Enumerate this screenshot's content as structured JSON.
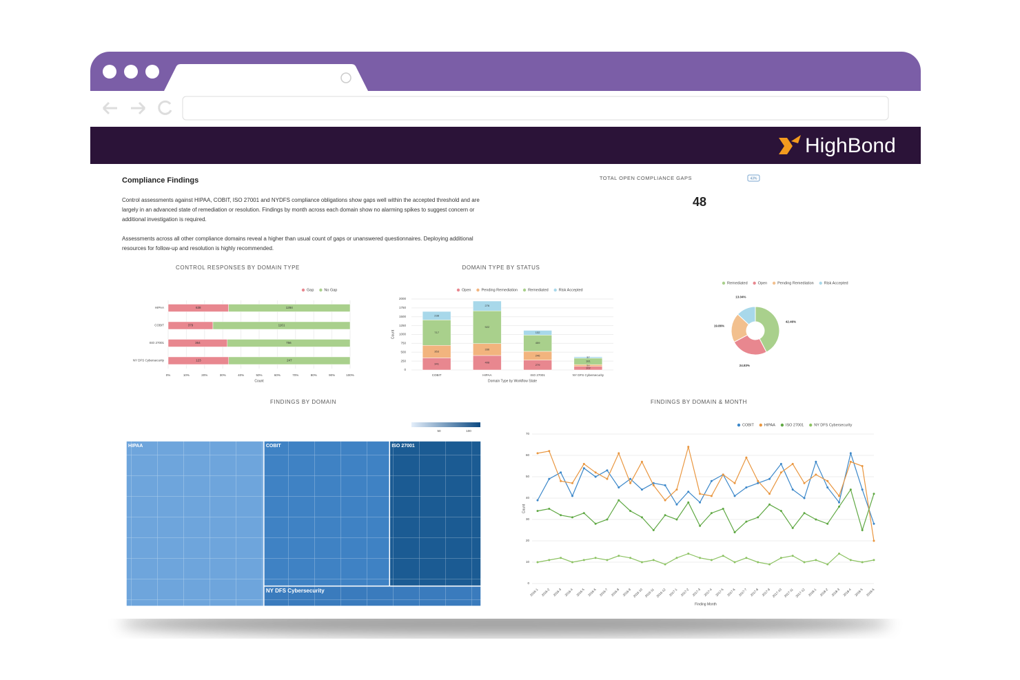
{
  "header": {
    "logo": "HighBond"
  },
  "summary": {
    "title": "Compliance Findings",
    "paragraphs": [
      "Control assessments against HIPAA, COBIT, ISO 27001 and NYDFS compliance obligations show gaps well within the accepted threshold and are largely in an advanced state of remediation or resolution. Findings by month across each domain show no alarming spikes to suggest concern or additional investigation is required.",
      "Assessments across all other compliance domains reveal a higher than usual count of gaps or unanswered questionnaires. Deploying additional resources for follow-up and resolution is highly recommended."
    ]
  },
  "kpi": {
    "label": "TOTAL OPEN COMPLIANCE GAPS",
    "badge": "43%",
    "value": 48
  },
  "chart_data": [
    {
      "type": "hbar",
      "title": "CONTROL RESPONSES BY DOMAIN TYPE",
      "categories": [
        "HIPAA",
        "COBIT",
        "ISO 27001",
        "NY DFS Cybersecurity"
      ],
      "series": [
        {
          "name": "Gap",
          "color": "#e8878f",
          "values": [
            638,
            379,
            364,
            123
          ]
        },
        {
          "name": "No Gap",
          "color": "#a9d08c",
          "values": [
            1284,
            1161,
            756,
            247
          ]
        }
      ],
      "xlim": [
        0,
        100
      ],
      "xticks": [
        {
          "value": 0,
          "label": "0%"
        },
        {
          "value": 10,
          "label": "10%"
        },
        {
          "value": 20,
          "label": "20%"
        },
        {
          "value": 30,
          "label": "30%"
        },
        {
          "value": 40,
          "label": "40%"
        },
        {
          "value": 50,
          "label": "50%"
        },
        {
          "value": 60,
          "label": "60%"
        },
        {
          "value": 70,
          "label": "70%"
        },
        {
          "value": 80,
          "label": "80%"
        },
        {
          "value": 90,
          "label": "90%"
        },
        {
          "value": 100,
          "label": "100%"
        }
      ],
      "xlabel": "Count",
      "grid": true
    },
    {
      "type": "stacked",
      "title": "DOMAIN TYPE BY STATUS",
      "categories": [
        "COBIT",
        "HIPAA",
        "ISO 27001",
        "NY DFS Cybersecurity"
      ],
      "series": [
        {
          "name": "Open",
          "color": "#e8878f",
          "values": [
            341,
            408,
            279,
            102
          ]
        },
        {
          "name": "Pending Remediation",
          "color": "#f2b47e",
          "values": [
            353,
            336,
            246,
            50
          ]
        },
        {
          "name": "Remediated",
          "color": "#a9d08c",
          "values": [
            717,
            922,
            459,
            181
          ]
        },
        {
          "name": "Risk Accepted",
          "color": "#a8d8ea",
          "values": [
            238,
            276,
            132,
            37
          ]
        }
      ],
      "ylim": [
        0,
        2000
      ],
      "yticks": [
        0,
        250,
        500,
        750,
        1000,
        1250,
        1500,
        1750,
        2000
      ],
      "ylabel": "Count",
      "xlabel": "Domain Type by Workflow State",
      "grid": true
    },
    {
      "type": "donut",
      "categories": [
        "Remediated",
        "Open",
        "Pending Remediation",
        "Risk Accepted"
      ],
      "values": [
        42.46,
        24.83,
        19.86,
        13.04
      ],
      "value_labels": [
        "42.46%",
        "24.83%",
        "19.86%",
        "13.04%"
      ],
      "colors": [
        "#a9d08c",
        "#e8878f",
        "#f2c08e",
        "#a8d8ea"
      ]
    },
    {
      "type": "treemap",
      "title": "FINDINGS BY DOMAIN",
      "categories": [
        "HIPAA",
        "COBIT",
        "ISO 27001",
        "NY DFS Cybersecurity"
      ],
      "values": [
        1922,
        1540,
        1120,
        370
      ],
      "colors": [
        "#6ea5dc",
        "#3f82c4",
        "#1b5b93",
        "#3a7bbd"
      ],
      "colorbar_ticks": [
        50,
        100
      ]
    },
    {
      "type": "line",
      "title": "FINDINGS BY DOMAIN & MONTH",
      "categories": [
        "2016-1",
        "2016-2",
        "2016-3",
        "2016-4",
        "2016-5",
        "2016-6",
        "2016-7",
        "2016-8",
        "2016-9",
        "2016-10",
        "2016-11",
        "2016-12",
        "2017-1",
        "2017-2",
        "2017-3",
        "2017-4",
        "2017-5",
        "2017-6",
        "2017-7",
        "2017-8",
        "2017-9",
        "2017-10",
        "2017-11",
        "2017-12",
        "2018-1",
        "2018-2",
        "2018-3",
        "2018-4",
        "2018-5",
        "2018-6"
      ],
      "series": [
        {
          "name": "COBIT",
          "color": "#3b87c9",
          "values": [
            39,
            49,
            52,
            41,
            54,
            50,
            53,
            45,
            49,
            44,
            47,
            46,
            37,
            43,
            38,
            48,
            51,
            41,
            45,
            47,
            49,
            56,
            44,
            40,
            57,
            45,
            38,
            61,
            44,
            28
          ]
        },
        {
          "name": "HIPAA",
          "color": "#e9963f",
          "values": [
            61,
            62,
            48,
            47,
            56,
            52,
            49,
            61,
            47,
            57,
            46,
            39,
            44,
            64,
            42,
            41,
            51,
            47,
            59,
            48,
            42,
            52,
            56,
            47,
            51,
            48,
            41,
            57,
            55,
            20
          ]
        },
        {
          "name": "ISO 27001",
          "color": "#5fa843",
          "values": [
            34,
            35,
            32,
            31,
            33,
            28,
            30,
            39,
            34,
            31,
            25,
            32,
            30,
            38,
            27,
            33,
            35,
            24,
            29,
            31,
            37,
            34,
            26,
            33,
            30,
            28,
            36,
            44,
            25,
            42
          ]
        },
        {
          "name": "NY DFS Cybersecurity",
          "color": "#8cc262",
          "values": [
            10,
            11,
            12,
            10,
            11,
            12,
            11,
            13,
            12,
            10,
            11,
            9,
            12,
            14,
            12,
            11,
            13,
            10,
            12,
            10,
            9,
            12,
            13,
            10,
            11,
            9,
            14,
            11,
            10,
            11
          ]
        }
      ],
      "ylim": [
        0,
        70
      ],
      "yticks": [
        0,
        10,
        20,
        30,
        40,
        50,
        60,
        70
      ],
      "ylabel": "Count",
      "xlabel": "Finding Month",
      "grid": true
    }
  ]
}
